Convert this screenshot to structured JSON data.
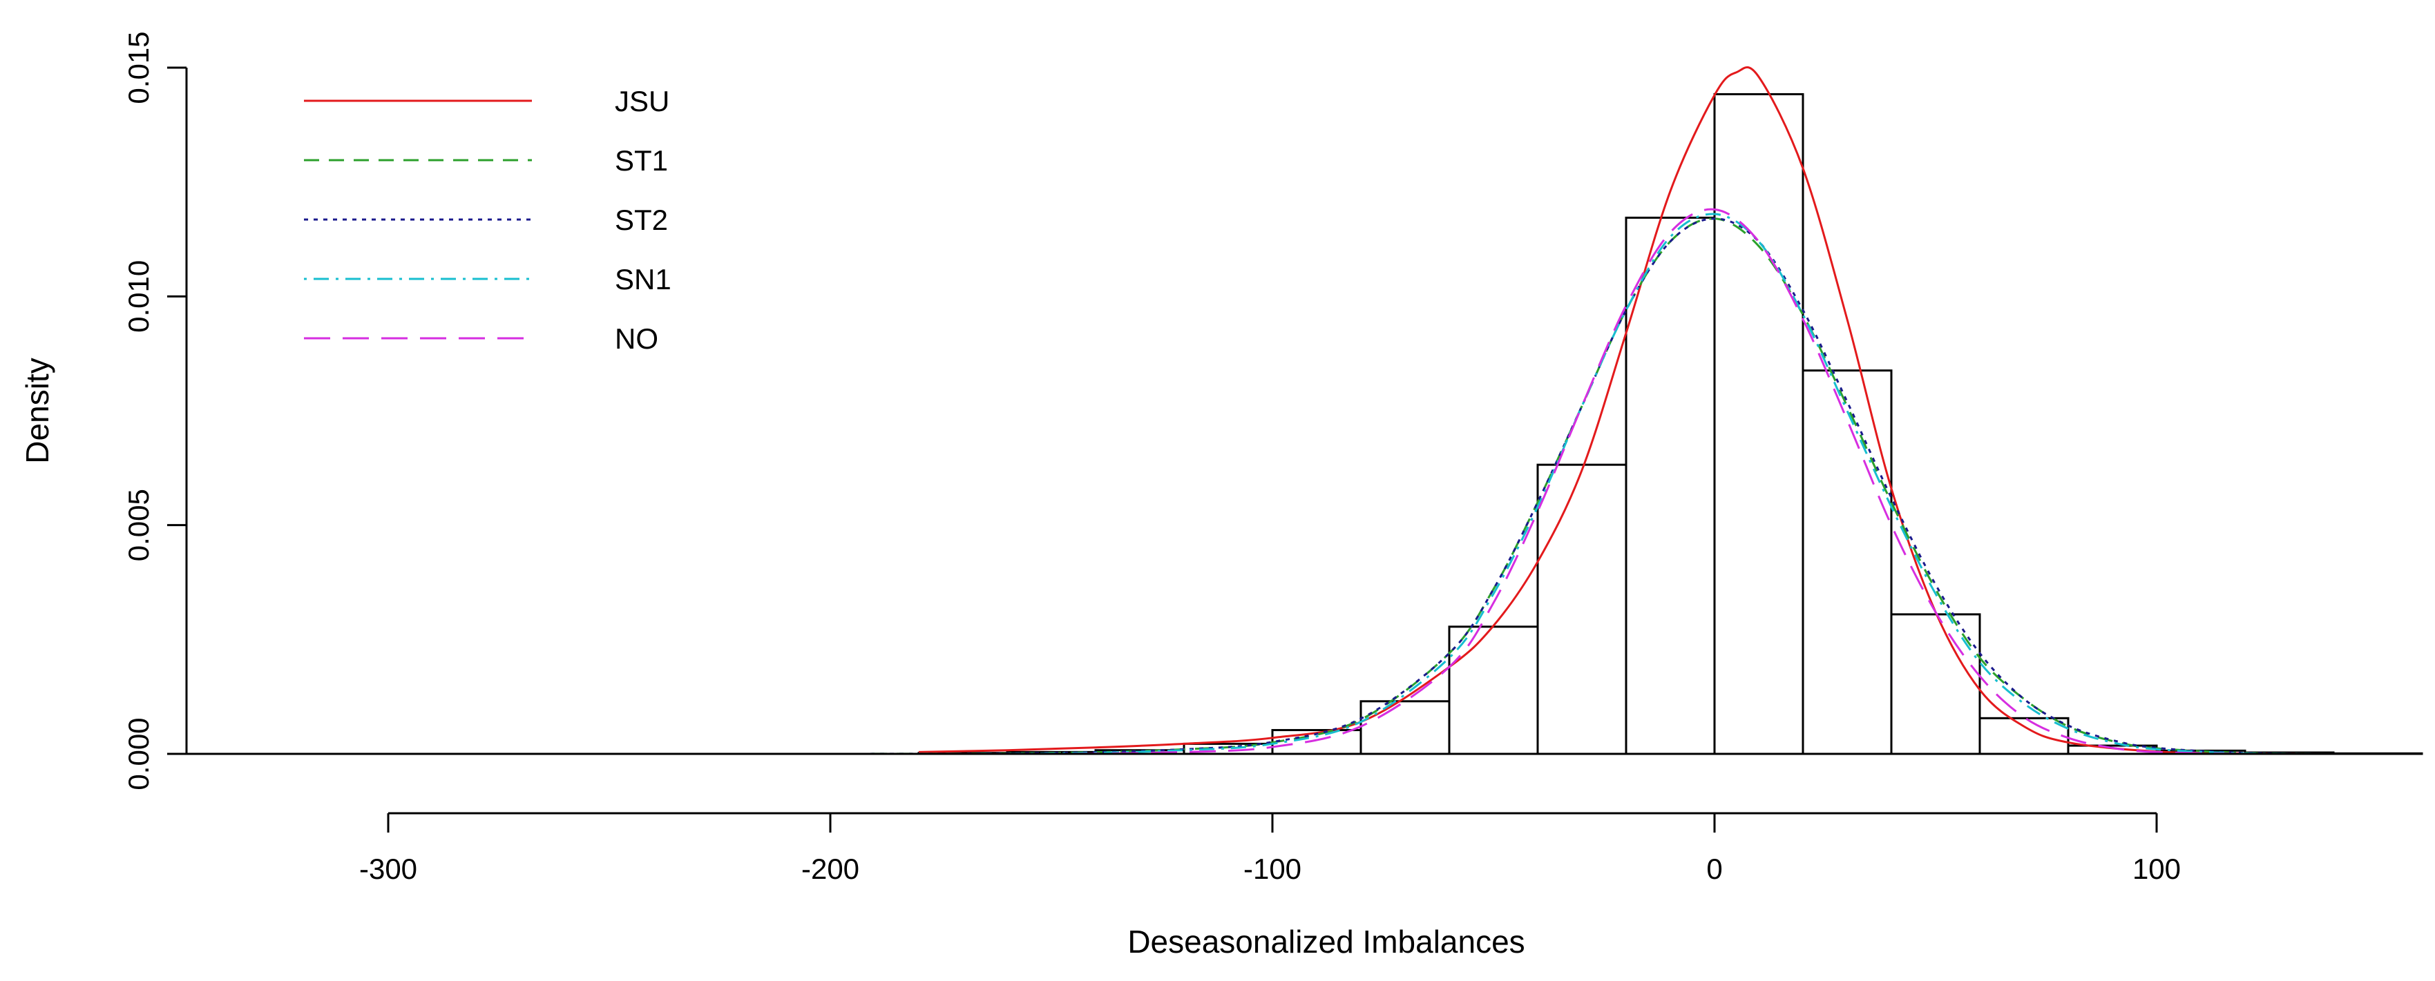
{
  "chart_data": {
    "type": "histogram",
    "title": "",
    "xlabel": "Deseasonalized Imbalances",
    "ylabel": "Density",
    "xlim": [
      -330,
      160
    ],
    "ylim": [
      0,
      0.015
    ],
    "x_ticks": [
      -300,
      -200,
      -100,
      0,
      100
    ],
    "x_tick_labels": [
      "-300",
      "-200",
      "-100",
      "0",
      "100"
    ],
    "y_ticks": [
      0.0,
      0.005,
      0.01,
      0.015
    ],
    "y_tick_labels": [
      "0.000",
      "0.005",
      "0.010",
      "0.015"
    ],
    "grid": false,
    "legend_position": "top-left",
    "histogram": {
      "bins": [
        {
          "x0": -180,
          "x1": -160,
          "density": 2e-05
        },
        {
          "x0": -160,
          "x1": -140,
          "density": 4e-05
        },
        {
          "x0": -140,
          "x1": -120,
          "density": 8e-05
        },
        {
          "x0": -120,
          "x1": -100,
          "density": 0.00022
        },
        {
          "x0": -100,
          "x1": -80,
          "density": 0.00052
        },
        {
          "x0": -80,
          "x1": -60,
          "density": 0.00115
        },
        {
          "x0": -60,
          "x1": -40,
          "density": 0.00278
        },
        {
          "x0": -40,
          "x1": -20,
          "density": 0.00632
        },
        {
          "x0": -20,
          "x1": 0,
          "density": 0.01172
        },
        {
          "x0": 0,
          "x1": 20,
          "density": 0.01442
        },
        {
          "x0": 20,
          "x1": 40,
          "density": 0.00838
        },
        {
          "x0": 40,
          "x1": 60,
          "density": 0.00305
        },
        {
          "x0": 60,
          "x1": 80,
          "density": 0.00078
        },
        {
          "x0": 80,
          "x1": 100,
          "density": 0.00018
        },
        {
          "x0": 100,
          "x1": 120,
          "density": 7e-05
        },
        {
          "x0": 120,
          "x1": 140,
          "density": 3e-05
        },
        {
          "x0": 140,
          "x1": 160,
          "density": 1e-05
        }
      ]
    },
    "series": [
      {
        "name": "JSU",
        "color": "#e31a1c",
        "dash": "solid",
        "x": [
          -180,
          -160,
          -140,
          -120,
          -100,
          -80,
          -60,
          -50,
          -40,
          -30,
          -20,
          -10,
          0,
          5,
          10,
          20,
          30,
          40,
          50,
          60,
          70,
          80,
          100,
          120,
          140
        ],
        "y": [
          4e-05,
          8e-05,
          0.00014,
          0.00022,
          0.00035,
          0.0007,
          0.0019,
          0.0028,
          0.0042,
          0.0062,
          0.0092,
          0.0123,
          0.0144,
          0.0149,
          0.0148,
          0.0128,
          0.0095,
          0.0058,
          0.0031,
          0.0014,
          0.0006,
          0.00025,
          5e-05,
          1e-05,
          0.0
        ]
      },
      {
        "name": "ST1",
        "color": "#2ca02c",
        "dash": "dashed",
        "x": [
          -320,
          -200,
          -150,
          -120,
          -100,
          -80,
          -60,
          -50,
          -40,
          -30,
          -20,
          -10,
          0,
          10,
          20,
          30,
          40,
          50,
          60,
          70,
          80,
          90,
          100,
          120,
          140,
          150
        ],
        "y": [
          0.0,
          0.0,
          2e-05,
          0.0001,
          0.00025,
          0.00075,
          0.0022,
          0.0036,
          0.0055,
          0.0076,
          0.0097,
          0.0112,
          0.0117,
          0.0111,
          0.0096,
          0.0076,
          0.0055,
          0.0036,
          0.0021,
          0.0012,
          0.0006,
          0.00028,
          0.00012,
          2e-05,
          0.0,
          0.0
        ]
      },
      {
        "name": "ST2",
        "color": "#1a1a8c",
        "dash": "dotted",
        "x": [
          -320,
          -200,
          -150,
          -120,
          -100,
          -80,
          -60,
          -50,
          -40,
          -30,
          -20,
          -10,
          0,
          10,
          20,
          30,
          40,
          50,
          60,
          70,
          80,
          90,
          100,
          120,
          140,
          150
        ],
        "y": [
          0.0,
          0.0,
          2e-05,
          0.0001,
          0.00026,
          0.00077,
          0.0022,
          0.0036,
          0.0055,
          0.0076,
          0.0097,
          0.0112,
          0.0117,
          0.0112,
          0.0097,
          0.0077,
          0.0056,
          0.0037,
          0.0022,
          0.0012,
          0.00062,
          0.0003,
          0.00013,
          2e-05,
          0.0,
          0.0
        ]
      },
      {
        "name": "SN1",
        "color": "#17becf",
        "dash": "dashdot",
        "x": [
          -320,
          -200,
          -150,
          -120,
          -100,
          -80,
          -60,
          -50,
          -40,
          -30,
          -20,
          -10,
          0,
          10,
          20,
          30,
          40,
          50,
          60,
          70,
          80,
          90,
          100,
          120,
          140,
          150
        ],
        "y": [
          0.0,
          0.0,
          1e-05,
          8e-05,
          0.00022,
          0.0007,
          0.0021,
          0.0035,
          0.0054,
          0.0076,
          0.0097,
          0.0113,
          0.0118,
          0.0112,
          0.0096,
          0.0075,
          0.0054,
          0.0035,
          0.002,
          0.0011,
          0.00055,
          0.00025,
          0.0001,
          1e-05,
          0.0,
          0.0
        ]
      },
      {
        "name": "NO",
        "color": "#d62ee0",
        "dash": "longdash",
        "x": [
          -320,
          -200,
          -150,
          -120,
          -100,
          -80,
          -60,
          -50,
          -40,
          -30,
          -20,
          -10,
          0,
          10,
          20,
          30,
          40,
          50,
          60,
          70,
          80,
          90,
          100,
          120,
          140,
          150
        ],
        "y": [
          0.0,
          0.0,
          0.0,
          4e-05,
          0.00015,
          0.0006,
          0.0019,
          0.0033,
          0.0053,
          0.0076,
          0.0098,
          0.0114,
          0.0119,
          0.0112,
          0.0095,
          0.0073,
          0.005,
          0.0031,
          0.0017,
          0.0008,
          0.00035,
          0.00013,
          4e-05,
          0.0,
          0.0,
          0.0
        ]
      }
    ]
  }
}
